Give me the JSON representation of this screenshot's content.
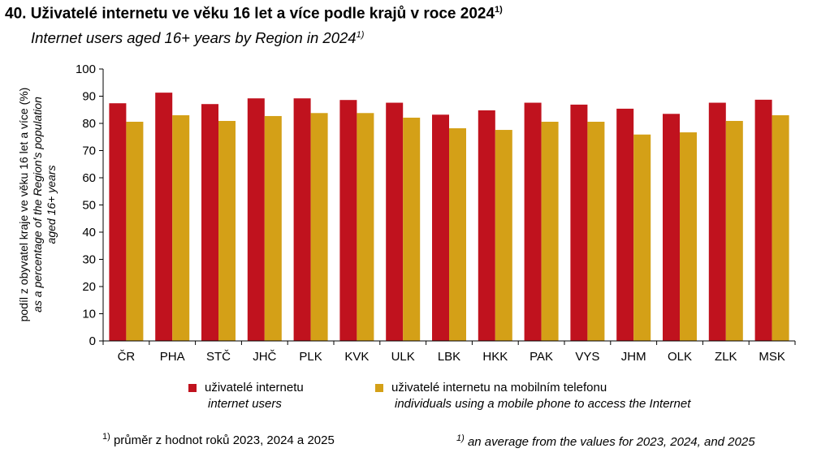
{
  "title": {
    "cz": "40. Uživatelé internetu ve věku 16 let a více podle krajů v roce 2024",
    "en": "Internet users aged 16+ years by Region in 2024",
    "footnote_mark": "1)"
  },
  "colors": {
    "internet": "#C0121E",
    "mobile": "#D4A017"
  },
  "chart_data": {
    "type": "bar",
    "title": "Internet users aged 16+ years by Region in 2024",
    "ylabel_cz": "podíl z obyvatel kraje ve věku 16 let a více (%)",
    "ylabel_en_1": "as a percentage of the Region's population",
    "ylabel_en_2": "aged 16+ years",
    "ylim": [
      0,
      100
    ],
    "yticks": [
      0,
      10,
      20,
      30,
      40,
      50,
      60,
      70,
      80,
      90,
      100
    ],
    "categories": [
      "ČR",
      "PHA",
      "STČ",
      "JHČ",
      "PLK",
      "KVK",
      "ULK",
      "LBK",
      "HKK",
      "PAK",
      "VYS",
      "JHM",
      "OLK",
      "ZLK",
      "MSK"
    ],
    "series": [
      {
        "name": "uživatelé internetu",
        "name_en": "internet users",
        "values": [
          87.4,
          91.3,
          87.1,
          89.2,
          89.2,
          88.6,
          87.6,
          83.2,
          84.8,
          87.6,
          86.9,
          85.4,
          83.5,
          87.6,
          88.7
        ]
      },
      {
        "name": "uživatelé internetu na mobilním telefonu",
        "name_en": "individuals using a mobile phone to access the Internet",
        "values": [
          80.6,
          83.0,
          80.9,
          82.7,
          83.8,
          83.8,
          82.1,
          78.2,
          77.6,
          80.6,
          80.6,
          75.9,
          76.7,
          80.9,
          83.0
        ]
      }
    ],
    "grid": false,
    "legend_position": "bottom"
  },
  "footnote": {
    "mark": "1)",
    "cz": "průměr z hodnot roků 2023, 2024 a 2025",
    "en": "an average from the values for 2023, 2024, and 2025"
  }
}
